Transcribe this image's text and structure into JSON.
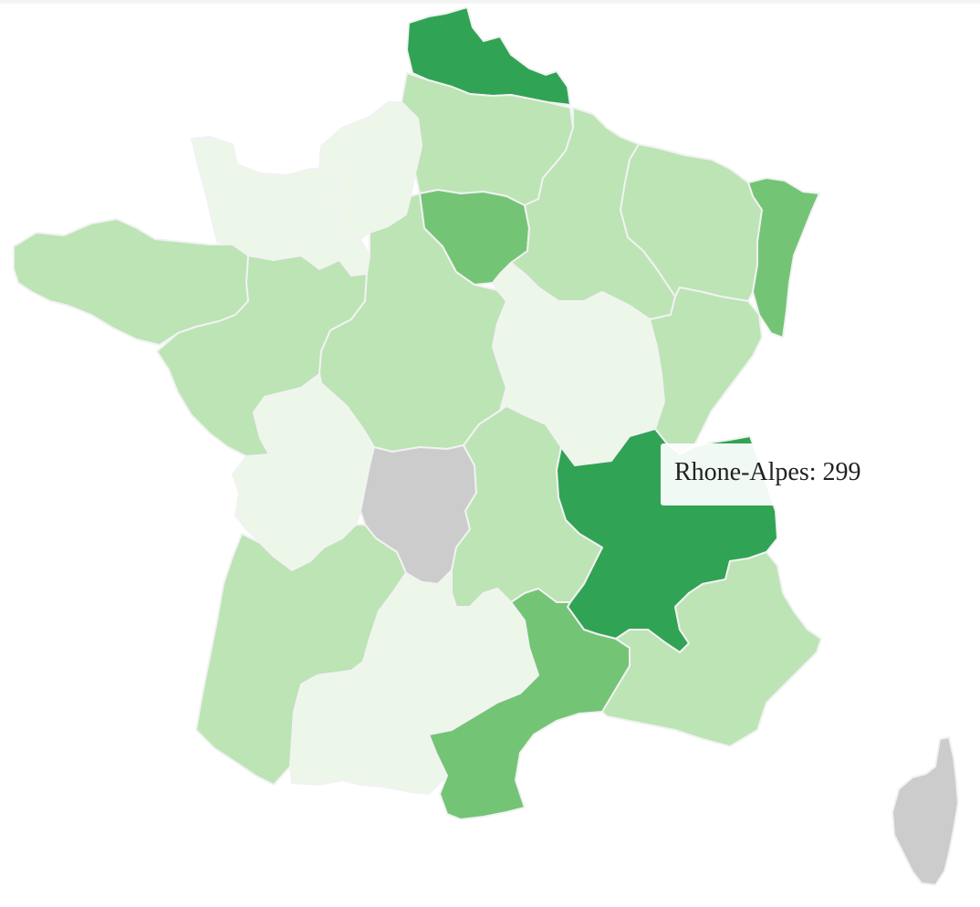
{
  "palette": {
    "level_1": "#edf7e9",
    "level_2": "#bce4b5",
    "level_3": "#74c476",
    "level_4": "#31a354",
    "no_data": "#cccccc",
    "border": "#f2f2f2"
  },
  "regions": [
    {
      "name": "Nord-Pas-de-Calais",
      "level": "level_4"
    },
    {
      "name": "Picardie",
      "level": "level_2"
    },
    {
      "name": "Haute-Normandie",
      "level": "level_1"
    },
    {
      "name": "Basse-Normandie",
      "level": "level_1"
    },
    {
      "name": "Bretagne",
      "level": "level_2"
    },
    {
      "name": "Pays de la Loire",
      "level": "level_2"
    },
    {
      "name": "Centre",
      "level": "level_2"
    },
    {
      "name": "Ile-de-France",
      "level": "level_3"
    },
    {
      "name": "Champagne-Ardenne",
      "level": "level_2"
    },
    {
      "name": "Lorraine",
      "level": "level_2"
    },
    {
      "name": "Alsace",
      "level": "level_3"
    },
    {
      "name": "Bourgogne",
      "level": "level_1"
    },
    {
      "name": "Franche-Comte",
      "level": "level_2"
    },
    {
      "name": "Poitou-Charentes",
      "level": "level_1"
    },
    {
      "name": "Limousin",
      "level": "no_data"
    },
    {
      "name": "Auvergne",
      "level": "level_2"
    },
    {
      "name": "Rhone-Alpes",
      "level": "level_4",
      "value": 299
    },
    {
      "name": "Aquitaine",
      "level": "level_2"
    },
    {
      "name": "Midi-Pyrenees",
      "level": "level_1"
    },
    {
      "name": "Languedoc-Roussillon",
      "level": "level_3"
    },
    {
      "name": "Provence-Alpes-Cote d'Azur",
      "level": "level_2"
    },
    {
      "name": "Corse",
      "level": "no_data"
    }
  ],
  "tooltip": {
    "text": "Rhone-Alpes: 299"
  }
}
